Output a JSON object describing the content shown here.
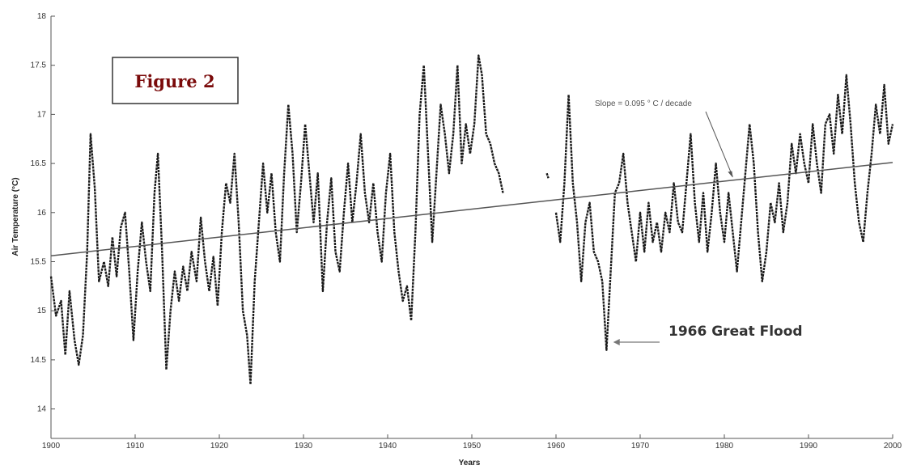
{
  "chart_data": {
    "type": "line",
    "title": "",
    "xlabel": "Years",
    "ylabel": "Air Temperature (°C)",
    "xlim": [
      1900,
      2000
    ],
    "ylim": [
      13.7,
      18.0
    ],
    "x_ticks": [
      1900,
      1910,
      1920,
      1930,
      1940,
      1950,
      1960,
      1970,
      1980,
      1990,
      2000
    ],
    "y_ticks": [
      14,
      14.5,
      15,
      15.5,
      16,
      16.5,
      17,
      17.5,
      18
    ],
    "y_tick_labels": [
      "14",
      "14.5",
      "15",
      "15.5",
      "16",
      "16.5",
      "17",
      "17.5",
      "18"
    ],
    "series": [
      {
        "name": "",
        "segments": [
          [
            [
              1900.0,
              15.35
            ],
            [
              1900.6,
              14.95
            ],
            [
              1901.2,
              15.1
            ],
            [
              1901.7,
              14.55
            ],
            [
              1902.2,
              15.2
            ],
            [
              1902.8,
              14.7
            ],
            [
              1903.3,
              14.45
            ],
            [
              1903.8,
              14.75
            ],
            [
              1904.3,
              15.6
            ],
            [
              1904.7,
              16.8
            ],
            [
              1905.2,
              16.25
            ],
            [
              1905.7,
              15.3
            ],
            [
              1906.3,
              15.5
            ],
            [
              1906.8,
              15.25
            ],
            [
              1907.3,
              15.75
            ],
            [
              1907.8,
              15.35
            ],
            [
              1908.3,
              15.85
            ],
            [
              1908.8,
              16.0
            ],
            [
              1909.3,
              15.4
            ],
            [
              1909.8,
              14.7
            ],
            [
              1910.3,
              15.4
            ],
            [
              1910.8,
              15.9
            ],
            [
              1911.3,
              15.5
            ],
            [
              1911.8,
              15.2
            ],
            [
              1912.3,
              16.2
            ],
            [
              1912.7,
              16.6
            ],
            [
              1913.2,
              15.6
            ],
            [
              1913.7,
              14.4
            ],
            [
              1914.2,
              15.0
            ],
            [
              1914.7,
              15.4
            ],
            [
              1915.2,
              15.1
            ],
            [
              1915.7,
              15.45
            ],
            [
              1916.2,
              15.2
            ],
            [
              1916.7,
              15.6
            ],
            [
              1917.3,
              15.3
            ],
            [
              1917.8,
              15.95
            ],
            [
              1918.3,
              15.5
            ],
            [
              1918.8,
              15.2
            ],
            [
              1919.3,
              15.55
            ],
            [
              1919.8,
              15.05
            ],
            [
              1920.3,
              15.8
            ],
            [
              1920.8,
              16.3
            ],
            [
              1921.3,
              16.1
            ],
            [
              1921.8,
              16.6
            ],
            [
              1922.3,
              15.9
            ],
            [
              1922.8,
              15.0
            ],
            [
              1923.3,
              14.75
            ],
            [
              1923.7,
              14.25
            ],
            [
              1924.2,
              15.3
            ],
            [
              1924.7,
              15.9
            ],
            [
              1925.2,
              16.5
            ],
            [
              1925.7,
              16.0
            ],
            [
              1926.2,
              16.4
            ],
            [
              1926.7,
              15.8
            ],
            [
              1927.2,
              15.5
            ],
            [
              1927.7,
              16.4
            ],
            [
              1928.2,
              17.1
            ],
            [
              1928.7,
              16.6
            ],
            [
              1929.2,
              15.8
            ],
            [
              1929.7,
              16.3
            ],
            [
              1930.2,
              16.9
            ],
            [
              1930.7,
              16.4
            ],
            [
              1931.2,
              15.9
            ],
            [
              1931.7,
              16.4
            ],
            [
              1932.3,
              15.2
            ],
            [
              1932.8,
              15.9
            ],
            [
              1933.3,
              16.35
            ],
            [
              1933.8,
              15.6
            ],
            [
              1934.3,
              15.4
            ],
            [
              1934.8,
              16.0
            ],
            [
              1935.3,
              16.5
            ],
            [
              1935.8,
              15.9
            ],
            [
              1936.3,
              16.3
            ],
            [
              1936.8,
              16.8
            ],
            [
              1937.3,
              16.2
            ],
            [
              1937.8,
              15.9
            ],
            [
              1938.3,
              16.3
            ],
            [
              1938.8,
              15.8
            ],
            [
              1939.3,
              15.5
            ],
            [
              1939.8,
              16.2
            ],
            [
              1940.3,
              16.6
            ],
            [
              1940.8,
              15.8
            ],
            [
              1941.3,
              15.4
            ],
            [
              1941.8,
              15.1
            ],
            [
              1942.3,
              15.25
            ],
            [
              1942.8,
              14.9
            ],
            [
              1943.3,
              15.8
            ],
            [
              1943.8,
              17.0
            ],
            [
              1944.3,
              17.5
            ],
            [
              1944.8,
              16.6
            ],
            [
              1945.3,
              15.7
            ],
            [
              1945.8,
              16.4
            ],
            [
              1946.3,
              17.1
            ],
            [
              1946.8,
              16.8
            ],
            [
              1947.3,
              16.4
            ],
            [
              1947.8,
              16.8
            ],
            [
              1948.3,
              17.5
            ],
            [
              1948.8,
              16.5
            ],
            [
              1949.3,
              16.9
            ],
            [
              1949.8,
              16.6
            ],
            [
              1950.3,
              16.9
            ],
            [
              1950.8,
              17.6
            ],
            [
              1951.2,
              17.4
            ],
            [
              1951.7,
              16.8
            ],
            [
              1952.2,
              16.7
            ],
            [
              1952.7,
              16.5
            ],
            [
              1953.2,
              16.4
            ],
            [
              1953.7,
              16.2
            ]
          ],
          [
            [
              1958.9,
              16.4
            ],
            [
              1959.1,
              16.35
            ]
          ],
          [
            [
              1960.0,
              16.0
            ],
            [
              1960.5,
              15.7
            ],
            [
              1961.0,
              16.3
            ],
            [
              1961.5,
              17.2
            ],
            [
              1962.0,
              16.3
            ],
            [
              1962.5,
              15.9
            ],
            [
              1963.0,
              15.3
            ],
            [
              1963.5,
              15.9
            ],
            [
              1964.0,
              16.1
            ],
            [
              1964.5,
              15.6
            ],
            [
              1965.0,
              15.5
            ],
            [
              1965.5,
              15.3
            ],
            [
              1966.0,
              14.6
            ],
            [
              1966.5,
              15.4
            ],
            [
              1967.0,
              16.2
            ],
            [
              1967.5,
              16.3
            ],
            [
              1968.0,
              16.6
            ],
            [
              1968.5,
              16.1
            ],
            [
              1969.0,
              15.8
            ],
            [
              1969.5,
              15.5
            ],
            [
              1970.0,
              16.0
            ],
            [
              1970.5,
              15.6
            ],
            [
              1971.0,
              16.1
            ],
            [
              1971.5,
              15.7
            ],
            [
              1972.0,
              15.9
            ],
            [
              1972.5,
              15.6
            ],
            [
              1973.0,
              16.0
            ],
            [
              1973.5,
              15.8
            ],
            [
              1974.0,
              16.3
            ],
            [
              1974.5,
              15.9
            ],
            [
              1975.0,
              15.8
            ],
            [
              1975.5,
              16.3
            ],
            [
              1976.0,
              16.8
            ],
            [
              1976.5,
              16.1
            ],
            [
              1977.0,
              15.7
            ],
            [
              1977.5,
              16.2
            ],
            [
              1978.0,
              15.6
            ],
            [
              1978.5,
              16.0
            ],
            [
              1979.0,
              16.5
            ],
            [
              1979.5,
              16.0
            ],
            [
              1980.0,
              15.7
            ],
            [
              1980.5,
              16.2
            ],
            [
              1981.0,
              15.8
            ],
            [
              1981.5,
              15.4
            ],
            [
              1982.0,
              15.9
            ],
            [
              1982.5,
              16.4
            ],
            [
              1983.0,
              16.9
            ],
            [
              1983.5,
              16.5
            ],
            [
              1984.0,
              15.8
            ],
            [
              1984.5,
              15.3
            ],
            [
              1985.0,
              15.6
            ],
            [
              1985.5,
              16.1
            ],
            [
              1986.0,
              15.9
            ],
            [
              1986.5,
              16.3
            ],
            [
              1987.0,
              15.8
            ],
            [
              1987.5,
              16.1
            ],
            [
              1988.0,
              16.7
            ],
            [
              1988.5,
              16.4
            ],
            [
              1989.0,
              16.8
            ],
            [
              1989.5,
              16.5
            ],
            [
              1990.0,
              16.3
            ],
            [
              1990.5,
              16.9
            ],
            [
              1991.0,
              16.5
            ],
            [
              1991.5,
              16.2
            ],
            [
              1992.0,
              16.9
            ],
            [
              1992.5,
              17.0
            ],
            [
              1993.0,
              16.6
            ],
            [
              1993.5,
              17.2
            ],
            [
              1994.0,
              16.8
            ],
            [
              1994.5,
              17.4
            ],
            [
              1995.0,
              16.9
            ],
            [
              1995.5,
              16.3
            ],
            [
              1996.0,
              15.9
            ],
            [
              1996.5,
              15.7
            ],
            [
              1997.0,
              16.2
            ],
            [
              1997.5,
              16.6
            ],
            [
              1998.0,
              17.1
            ],
            [
              1998.5,
              16.8
            ],
            [
              1999.0,
              17.3
            ],
            [
              1999.5,
              16.7
            ],
            [
              2000.0,
              16.9
            ]
          ]
        ]
      }
    ],
    "trend_line": {
      "x": [
        1900,
        2000
      ],
      "y": [
        15.56,
        16.51
      ]
    },
    "annotations": [
      {
        "id": "figure",
        "text": "Figure 2"
      },
      {
        "id": "slope",
        "text": "Slope = 0.095 ° C / decade",
        "points_to": [
          1981,
          16.34
        ]
      },
      {
        "id": "flood",
        "text": "1966 Great Flood",
        "points_to": [
          1966.8,
          14.68
        ]
      }
    ],
    "grid": false,
    "colors": {
      "series": "#1a1a1a",
      "trend": "#555555",
      "figure_label": "#7a0a0a",
      "figure_border": "#333333"
    }
  }
}
